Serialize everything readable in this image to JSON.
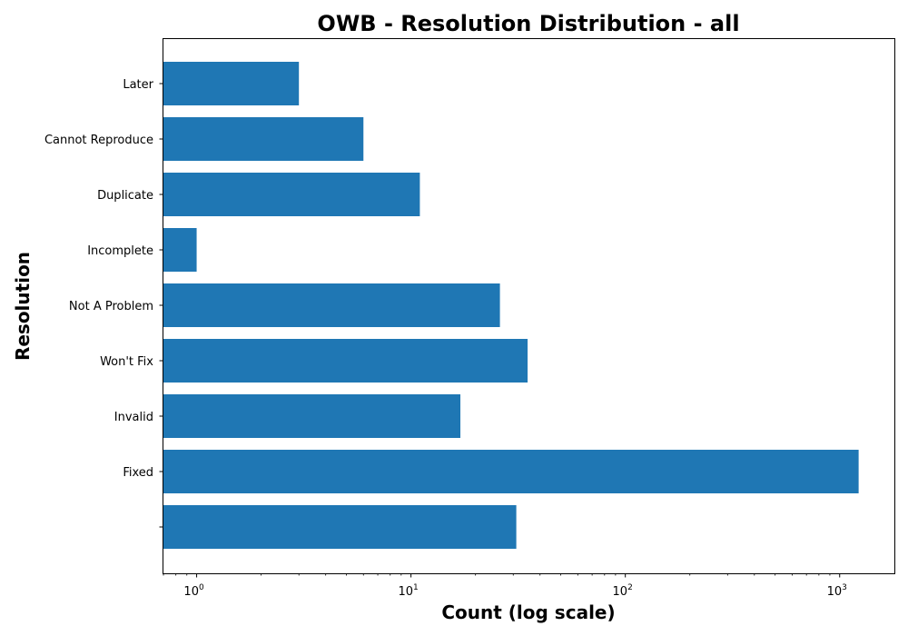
{
  "chart_data": {
    "type": "bar",
    "orientation": "horizontal",
    "title": "OWB - Resolution Distribution - all",
    "xlabel": "Count (log scale)",
    "ylabel": "Resolution",
    "xscale": "log",
    "xlim": [
      0.7,
      1800
    ],
    "xticks": [
      {
        "base": "10",
        "exp": "0"
      },
      {
        "base": "10",
        "exp": "1"
      },
      {
        "base": "10",
        "exp": "2"
      },
      {
        "base": "10",
        "exp": "3"
      }
    ],
    "categories": [
      "",
      "Fixed",
      "Invalid",
      "Won't Fix",
      "Not A Problem",
      "Incomplete",
      "Duplicate",
      "Cannot Reproduce",
      "Later"
    ],
    "values": [
      31,
      1226,
      17,
      35,
      26,
      1,
      11,
      6,
      3
    ],
    "bar_color": "#1f77b4",
    "grid": false
  }
}
